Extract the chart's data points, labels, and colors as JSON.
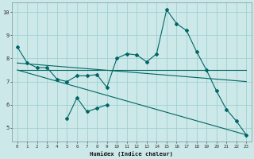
{
  "xlabel": "Humidex (Indice chaleur)",
  "bg_color": "#cce8e8",
  "grid_color": "#99cccc",
  "line_color": "#006666",
  "xlim_min": -0.5,
  "xlim_max": 23.5,
  "ylim_min": 4.4,
  "ylim_max": 10.4,
  "xticks": [
    0,
    1,
    2,
    3,
    4,
    5,
    6,
    7,
    8,
    9,
    10,
    11,
    12,
    13,
    14,
    15,
    16,
    17,
    18,
    19,
    20,
    21,
    22,
    23
  ],
  "yticks": [
    5,
    6,
    7,
    8,
    9,
    10
  ],
  "line1_x": [
    0,
    1,
    2,
    3,
    4,
    5,
    6,
    7,
    8,
    9,
    10,
    11,
    12,
    13,
    14,
    15,
    16,
    17,
    18,
    19,
    20,
    21,
    22,
    23
  ],
  "line1_y": [
    8.5,
    7.8,
    7.6,
    7.6,
    7.1,
    7.0,
    7.25,
    7.25,
    7.3,
    6.75,
    8.0,
    8.2,
    8.15,
    7.85,
    8.2,
    10.1,
    9.5,
    9.2,
    8.3,
    7.5,
    6.6,
    5.8,
    5.3,
    4.7
  ],
  "line2_x": [
    0,
    23
  ],
  "line2_y": [
    7.5,
    7.5
  ],
  "line3_x": [
    0,
    23
  ],
  "line3_y": [
    7.8,
    7.0
  ],
  "line4_x": [
    0,
    23
  ],
  "line4_y": [
    7.5,
    4.7
  ],
  "line5_x": [
    5,
    6,
    7,
    8,
    9
  ],
  "line5_y": [
    5.4,
    6.3,
    5.7,
    5.85,
    6.0
  ]
}
